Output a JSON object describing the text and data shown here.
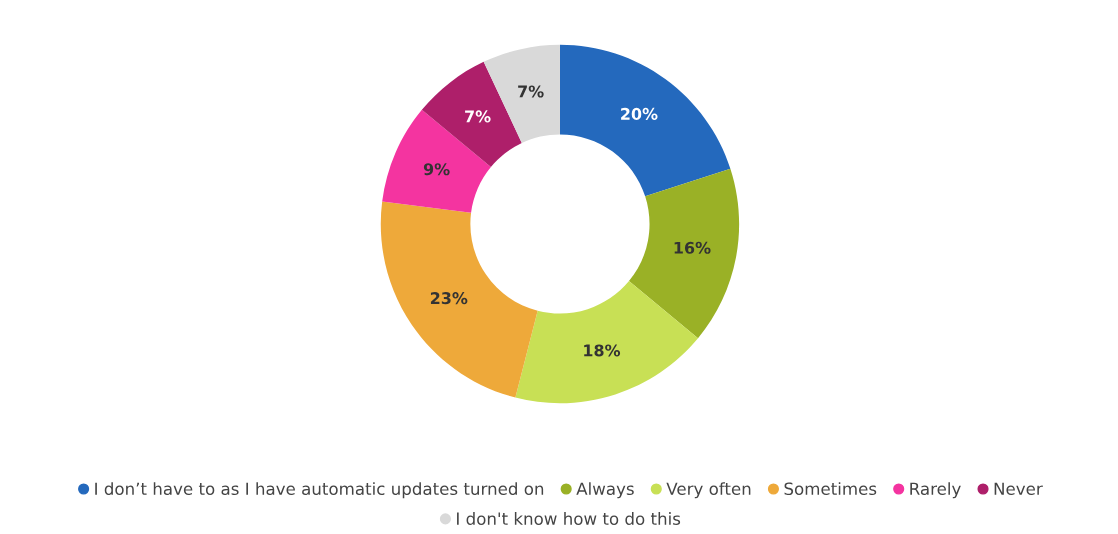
{
  "chart_data": {
    "type": "donut",
    "categories": [
      "I don’t have to as I have automatic updates turned on",
      "Always",
      "Very often",
      "Sometimes",
      "Rarely",
      "Never",
      "I don't know how to do this"
    ],
    "values": [
      20,
      16,
      18,
      23,
      9,
      7,
      7
    ],
    "colors": [
      "#2469bd",
      "#9ab126",
      "#c8e055",
      "#eea93a",
      "#f434a0",
      "#ae1f6a",
      "#d9d9d9"
    ],
    "value_labels": [
      "20%",
      "16%",
      "18%",
      "23%",
      "9%",
      "7%",
      "7%"
    ],
    "legend": "bottom"
  }
}
